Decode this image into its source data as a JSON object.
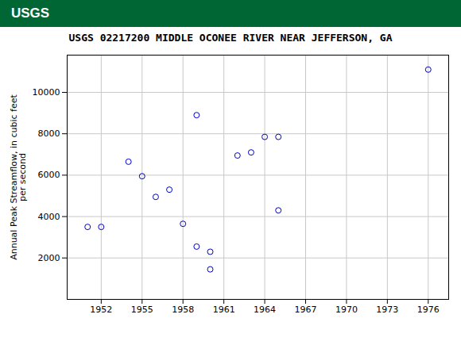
{
  "chart_data": {
    "type": "scatter",
    "title": "USGS 02217200 MIDDLE OCONEE RIVER NEAR JEFFERSON, GA",
    "annotations": [
      "USGS"
    ],
    "ylabel": "Annual Peak Streamflow, in cubic feet\nper second",
    "x": [
      1951,
      1952,
      1954,
      1955,
      1956,
      1957,
      1958,
      1959,
      1960,
      1962,
      1963,
      1964,
      1965,
      1976,
      1959,
      1965,
      1960
    ],
    "values": [
      3500,
      3500,
      6650,
      5950,
      4950,
      5300,
      3650,
      2550,
      2300,
      6950,
      7100,
      7850,
      4300,
      11100,
      8900,
      7850,
      1450
    ],
    "color": "#0000CC",
    "marker": "circle",
    "xlim": [
      1949.5,
      1977.5
    ],
    "ylim": [
      0,
      11800
    ],
    "xticks": [
      1952,
      1955,
      1958,
      1961,
      1964,
      1967,
      1970,
      1973,
      1976
    ],
    "yticks": [
      2000,
      4000,
      6000,
      8000,
      10000
    ],
    "grid": true
  }
}
